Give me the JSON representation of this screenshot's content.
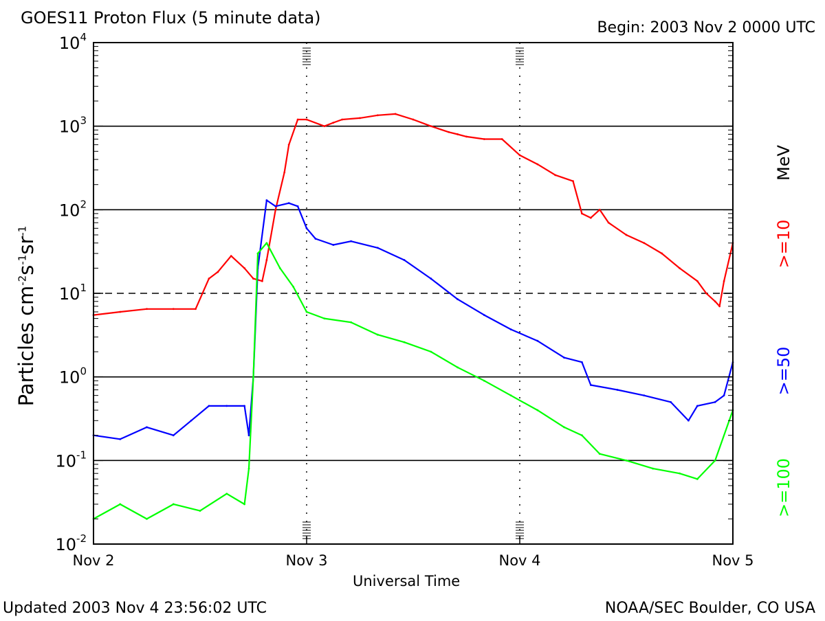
{
  "header": {
    "title": "GOES11 Proton Flux (5 minute data)",
    "begin": "Begin: 2003 Nov 2 0000 UTC"
  },
  "footer": {
    "updated": "Updated 2003 Nov  4 23:56:02 UTC",
    "credit": "NOAA/SEC Boulder, CO USA"
  },
  "chart_data": {
    "type": "line",
    "title": "GOES11 Proton Flux (5 minute data)",
    "xlabel": "Universal Time",
    "ylabel_parts": {
      "base": "Particles cm",
      "e1": "-2",
      "s": "s",
      "e2": "-1",
      "sr": "sr",
      "e3": "-1"
    },
    "yscale": "log",
    "ylim": [
      0.01,
      10000
    ],
    "y_ticks": [
      {
        "value": 0.01,
        "mantissa": "10",
        "exp": "-2"
      },
      {
        "value": 0.1,
        "mantissa": "10",
        "exp": "-1"
      },
      {
        "value": 1,
        "mantissa": "10",
        "exp": "0"
      },
      {
        "value": 10,
        "mantissa": "10",
        "exp": "1"
      },
      {
        "value": 100,
        "mantissa": "10",
        "exp": "2"
      },
      {
        "value": 1000,
        "mantissa": "10",
        "exp": "3"
      },
      {
        "value": 10000,
        "mantissa": "10",
        "exp": "4"
      }
    ],
    "xlim": [
      "2003-11-02 00:00",
      "2003-11-05 00:00"
    ],
    "x_ticks": [
      {
        "value": "2003-11-02 00:00",
        "label": "Nov 2"
      },
      {
        "value": "2003-11-03 00:00",
        "label": "Nov 3"
      },
      {
        "value": "2003-11-04 00:00",
        "label": "Nov 4"
      },
      {
        "value": "2003-11-05 00:00",
        "label": "Nov 5"
      }
    ],
    "hlines": [
      {
        "value": 0.1,
        "style": "solid"
      },
      {
        "value": 1,
        "style": "solid"
      },
      {
        "value": 10,
        "style": "dashed"
      },
      {
        "value": 100,
        "style": "solid"
      },
      {
        "value": 1000,
        "style": "solid"
      }
    ],
    "legend_unit": "MeV",
    "series": [
      {
        "name": ">=10",
        "color": "#ff0000",
        "x": [
          "2003-11-02 00:00",
          "2003-11-02 03:00",
          "2003-11-02 06:00",
          "2003-11-02 09:00",
          "2003-11-02 11:30",
          "2003-11-02 13:00",
          "2003-11-02 14:00",
          "2003-11-02 15:30",
          "2003-11-02 17:00",
          "2003-11-02 18:00",
          "2003-11-02 19:00",
          "2003-11-02 19:30",
          "2003-11-02 20:30",
          "2003-11-02 21:30",
          "2003-11-02 22:00",
          "2003-11-02 23:00",
          "2003-11-03 00:00",
          "2003-11-03 02:00",
          "2003-11-03 03:00",
          "2003-11-03 04:00",
          "2003-11-03 06:00",
          "2003-11-03 08:00",
          "2003-11-03 10:00",
          "2003-11-03 12:00",
          "2003-11-03 14:00",
          "2003-11-03 16:00",
          "2003-11-03 17:00",
          "2003-11-03 18:00",
          "2003-11-03 20:00",
          "2003-11-03 22:00",
          "2003-11-04 00:00",
          "2003-11-04 02:00",
          "2003-11-04 04:00",
          "2003-11-04 06:00",
          "2003-11-04 07:00",
          "2003-11-04 08:00",
          "2003-11-04 09:00",
          "2003-11-04 10:00",
          "2003-11-04 12:00",
          "2003-11-04 14:00",
          "2003-11-04 16:00",
          "2003-11-04 18:00",
          "2003-11-04 20:00",
          "2003-11-04 21:00",
          "2003-11-04 22:00",
          "2003-11-04 22:30",
          "2003-11-04 23:00",
          "2003-11-05 00:00"
        ],
        "values": [
          5.5,
          6,
          6.5,
          6.5,
          6.5,
          15,
          18,
          28,
          20,
          15,
          14,
          25,
          100,
          280,
          600,
          1200,
          1200,
          1000,
          1100,
          1200,
          1250,
          1350,
          1400,
          1200,
          1000,
          850,
          800,
          750,
          700,
          700,
          450,
          350,
          260,
          220,
          90,
          80,
          100,
          70,
          50,
          40,
          30,
          20,
          14,
          10,
          8,
          7,
          14,
          40
        ]
      },
      {
        "name": ">=50",
        "color": "#0000ff",
        "x": [
          "2003-11-02 00:00",
          "2003-11-02 03:00",
          "2003-11-02 06:00",
          "2003-11-02 09:00",
          "2003-11-02 11:00",
          "2003-11-02 13:00",
          "2003-11-02 15:00",
          "2003-11-02 17:00",
          "2003-11-02 17:30",
          "2003-11-02 18:00",
          "2003-11-02 18:30",
          "2003-11-02 19:30",
          "2003-11-02 20:30",
          "2003-11-02 22:00",
          "2003-11-02 23:00",
          "2003-11-03 00:00",
          "2003-11-03 01:00",
          "2003-11-03 03:00",
          "2003-11-03 05:00",
          "2003-11-03 08:00",
          "2003-11-03 11:00",
          "2003-11-03 14:00",
          "2003-11-03 17:00",
          "2003-11-03 20:00",
          "2003-11-03 23:00",
          "2003-11-04 02:00",
          "2003-11-04 05:00",
          "2003-11-04 07:00",
          "2003-11-04 08:00",
          "2003-11-04 11:00",
          "2003-11-04 14:00",
          "2003-11-04 17:00",
          "2003-11-04 19:00",
          "2003-11-04 20:00",
          "2003-11-04 22:00",
          "2003-11-04 23:00",
          "2003-11-05 00:00"
        ],
        "values": [
          0.2,
          0.18,
          0.25,
          0.2,
          0.3,
          0.45,
          0.45,
          0.45,
          0.2,
          1,
          20,
          130,
          110,
          120,
          110,
          60,
          45,
          38,
          42,
          35,
          25,
          15,
          8.5,
          5.5,
          3.7,
          2.7,
          1.7,
          1.5,
          0.8,
          0.7,
          0.6,
          0.5,
          0.3,
          0.45,
          0.5,
          0.6,
          1.5
        ]
      },
      {
        "name": ">=100",
        "color": "#00ff00",
        "x": [
          "2003-11-02 00:00",
          "2003-11-02 03:00",
          "2003-11-02 06:00",
          "2003-11-02 09:00",
          "2003-11-02 12:00",
          "2003-11-02 15:00",
          "2003-11-02 17:00",
          "2003-11-02 17:30",
          "2003-11-02 18:00",
          "2003-11-02 18:30",
          "2003-11-02 19:30",
          "2003-11-02 21:00",
          "2003-11-02 22:30",
          "2003-11-03 00:00",
          "2003-11-03 02:00",
          "2003-11-03 05:00",
          "2003-11-03 08:00",
          "2003-11-03 11:00",
          "2003-11-03 14:00",
          "2003-11-03 17:00",
          "2003-11-03 20:00",
          "2003-11-03 23:00",
          "2003-11-04 02:00",
          "2003-11-04 05:00",
          "2003-11-04 07:00",
          "2003-11-04 09:00",
          "2003-11-04 12:00",
          "2003-11-04 15:00",
          "2003-11-04 18:00",
          "2003-11-04 20:00",
          "2003-11-04 22:00",
          "2003-11-05 00:00"
        ],
        "values": [
          0.02,
          0.03,
          0.02,
          0.03,
          0.025,
          0.04,
          0.03,
          0.08,
          1,
          30,
          40,
          20,
          12,
          6,
          5,
          4.5,
          3.2,
          2.6,
          2,
          1.3,
          0.9,
          0.6,
          0.4,
          0.25,
          0.2,
          0.12,
          0.1,
          0.08,
          0.07,
          0.06,
          0.1,
          0.4
        ]
      }
    ]
  }
}
